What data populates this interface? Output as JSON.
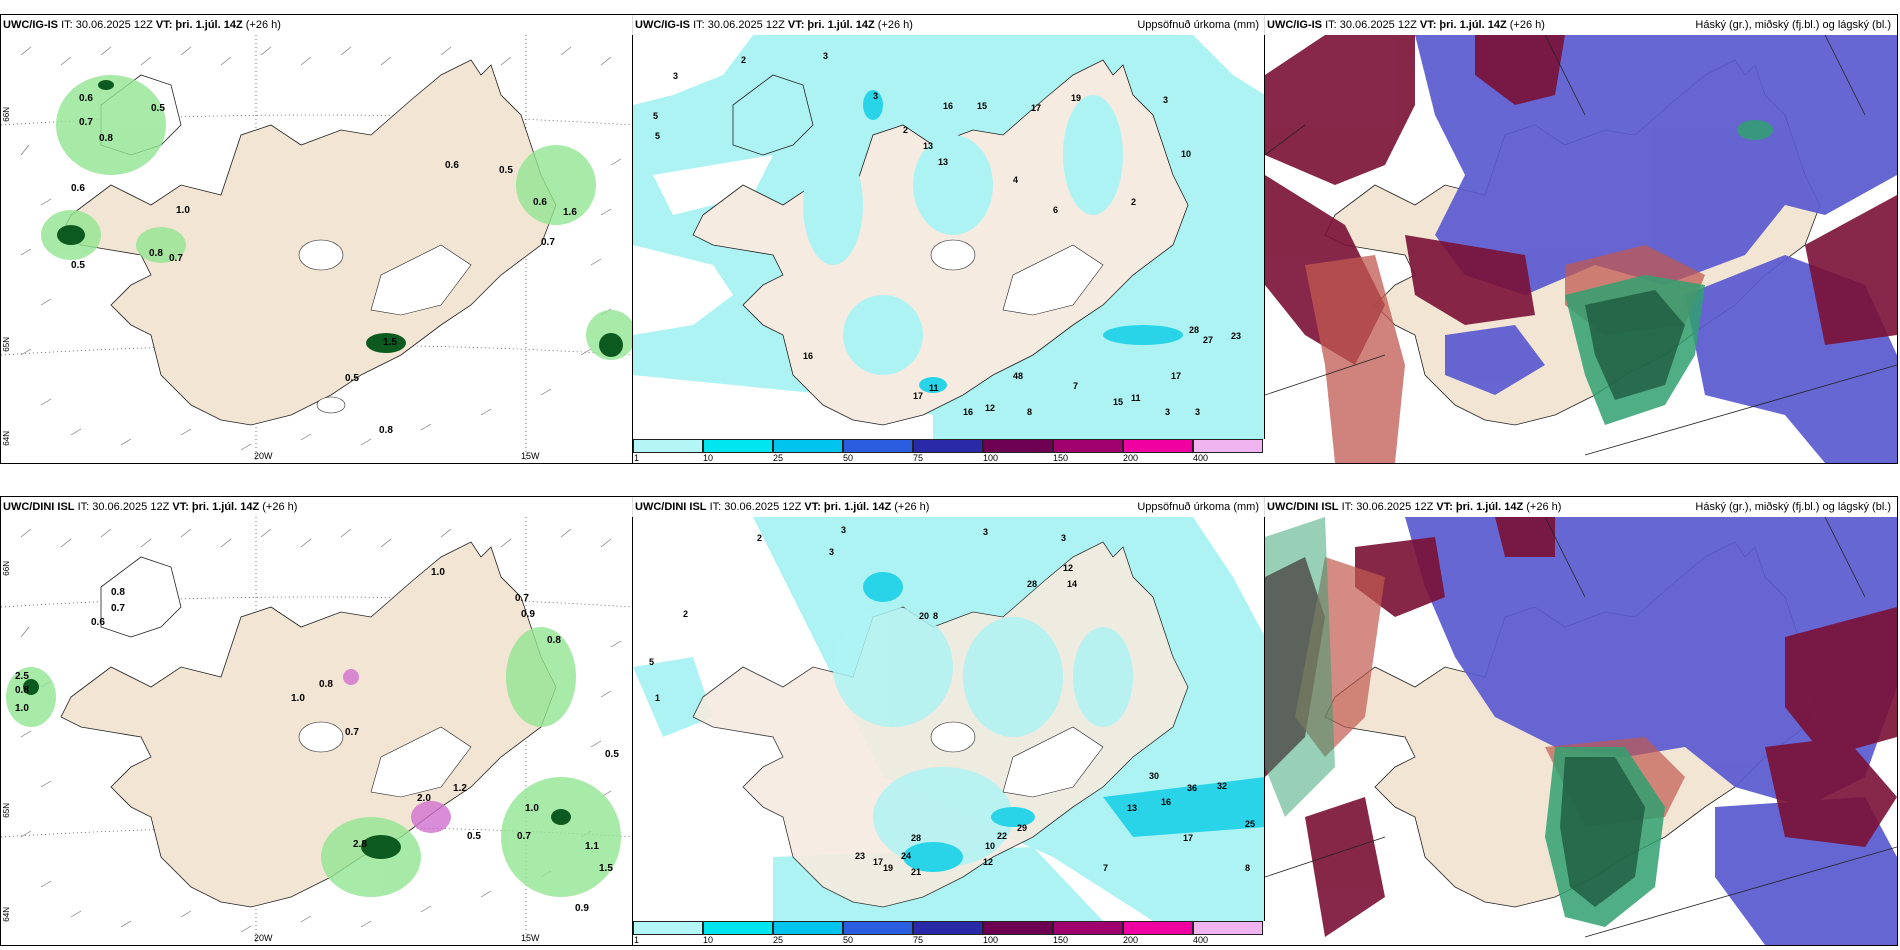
{
  "panels": [
    {
      "model": "UWC/IG-IS",
      "it": "IT: 30.06.2025 12Z",
      "vt_label": "VT:",
      "vt": "þri. 1.júl. 14Z",
      "lead": "(+26 h)",
      "title_right": ""
    },
    {
      "model": "UWC/IG-IS",
      "it": "IT: 30.06.2025 12Z",
      "vt_label": "VT:",
      "vt": "þri. 1.júl. 14Z",
      "lead": "(+26 h)",
      "title_right": "Uppsöfnuð úrkoma (mm)"
    },
    {
      "model": "UWC/IG-IS",
      "it": "IT: 30.06.2025 12Z",
      "vt_label": "VT:",
      "vt": "þri. 1.júl. 14Z",
      "lead": "(+26 h)",
      "title_right": "Háský (gr.), miðský (fj.bl.) og lágský (bl.)"
    },
    {
      "model": "UWC/DINI ISL",
      "it": "IT: 30.06.2025 12Z",
      "vt_label": "VT:",
      "vt": "þri. 1.júl. 14Z",
      "lead": "(+26 h)",
      "title_right": ""
    },
    {
      "model": "UWC/DINI ISL",
      "it": "IT: 30.06.2025 12Z",
      "vt_label": "VT:",
      "vt": "þri. 1.júl. 14Z",
      "lead": "(+26 h)",
      "title_right": "Uppsöfnuð úrkoma (mm)"
    },
    {
      "model": "UWC/DINI ISL",
      "it": "IT: 30.06.2025 12Z",
      "vt_label": "VT:",
      "vt": "þri. 1.júl. 14Z",
      "lead": "(+26 h)",
      "title_right": "Háský (gr.), miðský (fj.bl.) og lágský (bl.)"
    }
  ],
  "axis_labels": {
    "lon_20w": "20W",
    "lon_15w": "15W",
    "lat_66n": "66N",
    "lat_65n": "65N",
    "lat_64n": "64N"
  },
  "colorbar": {
    "labels": [
      "1",
      "10",
      "25",
      "50",
      "75",
      "100",
      "150",
      "200",
      "400"
    ],
    "colors": [
      "#b4f5f5",
      "#00e6f0",
      "#00c3ee",
      "#2a5de0",
      "#2a2aa8",
      "#6e0052",
      "#a0006e",
      "#f000a0",
      "#f0b4f0"
    ]
  },
  "colors": {
    "land": "#f3e5d3",
    "precip_light": "#aef3f3",
    "cloud_high": "#7a1035",
    "cloud_mid": "#5a5ad0",
    "cloud_low": "#30a070",
    "precip_green": "#92e592"
  },
  "values_ig_precip": [
    "3",
    "5",
    "5",
    "2",
    "3",
    "3",
    "16",
    "15",
    "17",
    "19",
    "2",
    "3",
    "13",
    "13",
    "4",
    "6",
    "10",
    "2",
    "28",
    "27",
    "23",
    "17",
    "15",
    "11",
    "48",
    "12",
    "16",
    "17",
    "11",
    "7",
    "3",
    "3",
    "8",
    "16"
  ],
  "values_dini_precip": [
    "2",
    "3",
    "3",
    "12",
    "14",
    "28",
    "20",
    "8",
    "2",
    "3",
    "36",
    "32",
    "30",
    "25",
    "17",
    "16",
    "13",
    "22",
    "29",
    "24",
    "21",
    "19",
    "23",
    "17",
    "28",
    "12",
    "10",
    "7",
    "8",
    "5",
    "1",
    "3"
  ],
  "values_ig_wind": [
    "0.6",
    "0.5",
    "0.7",
    "0.8",
    "0.6",
    "1.0",
    "0.8",
    "0.7",
    "0.5",
    "0.6",
    "0.5",
    "1.6",
    "0.6",
    "0.7",
    "0.5",
    "0.8",
    "1.5"
  ],
  "values_dini_wind": [
    "1.0",
    "0.7",
    "0.6",
    "0.8",
    "2.5",
    "0.8",
    "1.0",
    "1.0",
    "0.8",
    "0.7",
    "0.5",
    "1.2",
    "0.8",
    "0.9",
    "0.7",
    "0.5",
    "1.0",
    "2.0",
    "2.8",
    "1.1",
    "1.5",
    "0.9",
    "0.7"
  ]
}
